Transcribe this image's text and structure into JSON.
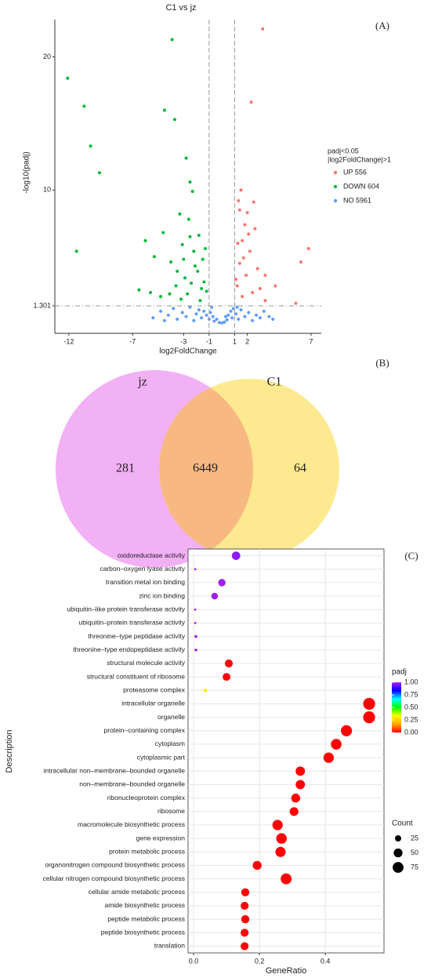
{
  "chart_data": [
    {
      "type": "scatter",
      "title": "C1 vs jz",
      "annotation": "(A)",
      "xlabel": "log2FoldChange",
      "ylabel": "-log10(padj)",
      "xlim": [
        -13.1,
        7.8
      ],
      "ylim": [
        -0.76,
        22.8
      ],
      "xticks": [
        -12,
        -7,
        -3,
        -1,
        1,
        2,
        7
      ],
      "yticks": [
        1.301,
        10,
        20
      ],
      "vlines": [
        -1,
        1
      ],
      "hline": 1.301,
      "legend_title": [
        "padj<0.05",
        "|log2FoldChange|>1"
      ],
      "legend": "right",
      "series": [
        {
          "name": "UP 556",
          "color": "#f8766d",
          "x": [
            3.2,
            2.3,
            6.2,
            6.8,
            5.8,
            3.4,
            1.4,
            1.6,
            1.8,
            2,
            1.3,
            1.5,
            2.6,
            2.2,
            1.9,
            1.2,
            2.8,
            3.4,
            2.4,
            1.6,
            4.2,
            1.4,
            2.1,
            1.7,
            1.1,
            1.25,
            2.5,
            3
          ],
          "y": [
            22.1,
            16.6,
            4.6,
            5.6,
            1.5,
            1.7,
            4.5,
            6.2,
            7.4,
            8.3,
            9.2,
            10,
            7.1,
            5.4,
            3.6,
            2.8,
            4.1,
            3.6,
            2.3,
            2,
            2.8,
            8.5,
            6.7,
            4.9,
            3.3,
            6,
            9.1,
            2.6
          ]
        },
        {
          "name": "DOWN 604",
          "color": "#00ba38",
          "x": [
            -12.1,
            -10.8,
            -10.3,
            -9.6,
            -11.4,
            -3.9,
            -4.5,
            -3.7,
            -2.8,
            -2.5,
            -2.3,
            -3.3,
            -2.6,
            -4.6,
            -6,
            -5.3,
            -4,
            -3.1,
            -1.8,
            -2.2,
            -1.5,
            -3.5,
            -2.9,
            -6.5,
            -5.6,
            -4.8,
            -4.1,
            -3.6,
            -2.4,
            -1.9,
            -1.4,
            -1.2,
            -2.7,
            -3.2,
            -1.7,
            -2.1,
            -1.3,
            -2.5,
            -3,
            -1.6
          ],
          "y": [
            18.4,
            16.3,
            13.3,
            11.3,
            5.4,
            21.3,
            16,
            15.3,
            12.4,
            10.6,
            9.9,
            8.2,
            7.8,
            6.8,
            6.2,
            5,
            4.6,
            5.9,
            6.6,
            5.4,
            4.8,
            3.9,
            3.4,
            2.5,
            2.3,
            2,
            2.2,
            2.8,
            3,
            3.9,
            3.1,
            2.4,
            2.2,
            1.8,
            1.7,
            4.3,
            5.6,
            6.5,
            4.8,
            2.6
          ]
        },
        {
          "name": "NO 5961",
          "color": "#619cff",
          "x": [
            -5.4,
            -4.8,
            -4.2,
            -3.8,
            -3.5,
            -3.1,
            -2.8,
            -2.5,
            -2.2,
            -2,
            -1.8,
            -1.6,
            -1.4,
            -1.2,
            -1,
            -0.9,
            -0.7,
            -0.6,
            -0.4,
            -0.2,
            0,
            0.2,
            0.4,
            0.5,
            0.7,
            0.8,
            0.9,
            1.1,
            1.3,
            1.5,
            1.8,
            2.1,
            2.4,
            2.7,
            3,
            3.3,
            3.7,
            4,
            -4.5,
            -0.8,
            0.3,
            1.2
          ],
          "y": [
            0.4,
            0.9,
            0.6,
            1.1,
            0.3,
            0.8,
            0.5,
            1.2,
            0.2,
            0.7,
            1,
            0.4,
            0.9,
            0.6,
            0.3,
            0.8,
            0.5,
            0.15,
            0.3,
            0.05,
            0.02,
            0.08,
            0.25,
            0.6,
            0.9,
            0.4,
            1.1,
            0.7,
            0.3,
            1,
            0.5,
            0.8,
            0.2,
            0.6,
            0.4,
            0.9,
            0.5,
            0.3,
            0.2,
            1.2,
            0.5,
            1.2
          ]
        }
      ]
    },
    {
      "type": "venn",
      "annotation": "(B)",
      "sets": [
        {
          "name": "jz",
          "color": "#f2b0f5"
        },
        {
          "name": "C1",
          "color": "#fde98f"
        }
      ],
      "overlap_color": "#f8b882",
      "values": [
        281,
        6449,
        64
      ]
    },
    {
      "type": "dot",
      "annotation": "(C)",
      "xlabel": "GeneRatio",
      "ylabel": "Description",
      "categories": [
        "oxidoreductase activity",
        "carbon–oxygen lyase activity",
        "transition metal ion binding",
        "zinc ion binding",
        "ubiquitin–like protein transferase activity",
        "ubiquitin–protein transferase activity",
        "threonine–type peptidase activity",
        "threonine–type endopeptidase activity",
        "structural molecule activity",
        "structural constituent of ribosome",
        "proteasome complex",
        "intracellular organelle",
        "organelle",
        "protein–containing complex",
        "cytoplasm",
        "cytoplasmic part",
        "intracellular non–membrane–bounded organelle",
        "non–membrane–bounded organelle",
        "ribonucleoprotein complex",
        "ribosome",
        "macromolecule biosynthetic process",
        "gene expression",
        "protein metabolic process",
        "organonitrogen compound biosynthetic process",
        "cellular nitrogen compound biosynthetic process",
        "cellular amide metabolic process",
        "amide biosynthetic process",
        "peptide metabolic process",
        "peptide biosynthetic process",
        "translation"
      ],
      "values": [
        0.129,
        0.005,
        0.086,
        0.064,
        0.005,
        0.005,
        0.007,
        0.007,
        0.107,
        0.1,
        0.036,
        0.533,
        0.533,
        0.464,
        0.433,
        0.41,
        0.324,
        0.324,
        0.31,
        0.305,
        0.255,
        0.267,
        0.264,
        0.193,
        0.281,
        0.157,
        0.155,
        0.157,
        0.155,
        0.155
      ],
      "padj": [
        0.98,
        1,
        1,
        1,
        1,
        1,
        1,
        1,
        0,
        0,
        0.3,
        0,
        0,
        0,
        0,
        0,
        0,
        0,
        0,
        0,
        0,
        0,
        0,
        0,
        0,
        0,
        0,
        0,
        0,
        0
      ],
      "sizes": [
        45,
        3,
        35,
        28,
        3,
        3,
        5,
        5,
        40,
        38,
        8,
        90,
        90,
        78,
        72,
        68,
        55,
        55,
        50,
        48,
        68,
        70,
        66,
        50,
        75,
        42,
        40,
        42,
        40,
        40
      ],
      "xlim": [
        -0.0167,
        0.578
      ],
      "xticks": [
        {
          "value": 0,
          "label": "0.0"
        },
        0.2,
        0.4
      ],
      "grid": true,
      "color_title": "padj",
      "colorscale": [
        "#ff0000",
        "#ffa500",
        "#ffff00",
        "#00ff00",
        "#00ffff",
        "#0000ff",
        "#a020f0"
      ],
      "color_ticks": [
        {
          "value": 1,
          "label": "1.00"
        },
        {
          "value": 0.75,
          "label": "0.75"
        },
        {
          "value": 0.5,
          "label": "0.50"
        },
        {
          "value": 0.25,
          "label": "0.25"
        },
        {
          "value": 0,
          "label": "0.00"
        }
      ],
      "size_title": "Count",
      "size_ticks": [
        25,
        50,
        75
      ]
    }
  ]
}
